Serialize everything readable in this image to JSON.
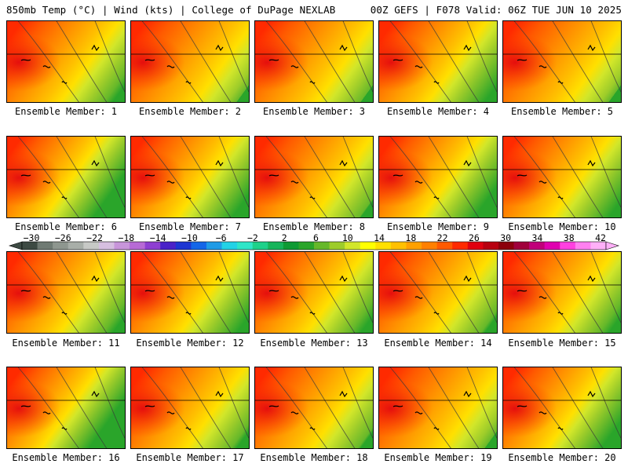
{
  "header": {
    "left_title": "850mb Temp (°C) | Wind (kts) | College of DuPage NEXLAB",
    "right_title": "00Z GEFS | F078 Valid: 06Z TUE JUN 10 2025"
  },
  "map": {
    "variable": "850mb Temp (°C)",
    "wind_units": "kts",
    "panels": [
      {
        "label": "Ensemble Member: 1",
        "member": 1,
        "warm": 1.0,
        "shift": 0.05
      },
      {
        "label": "Ensemble Member: 2",
        "member": 2,
        "warm": 1.05,
        "shift": 0.12
      },
      {
        "label": "Ensemble Member: 3",
        "member": 3,
        "warm": 0.95,
        "shift": 0.18
      },
      {
        "label": "Ensemble Member: 4",
        "member": 4,
        "warm": 0.98,
        "shift": 0.02
      },
      {
        "label": "Ensemble Member: 5",
        "member": 5,
        "warm": 1.08,
        "shift": 0.1
      },
      {
        "label": "Ensemble Member: 6",
        "member": 6,
        "warm": 0.92,
        "shift": -0.05
      },
      {
        "label": "Ensemble Member: 7",
        "member": 7,
        "warm": 0.97,
        "shift": 0.0
      },
      {
        "label": "Ensemble Member: 8",
        "member": 8,
        "warm": 0.95,
        "shift": 0.15
      },
      {
        "label": "Ensemble Member: 9",
        "member": 9,
        "warm": 0.9,
        "shift": 0.03
      },
      {
        "label": "Ensemble Member: 10",
        "member": 10,
        "warm": 1.02,
        "shift": -0.02
      },
      {
        "label": "Ensemble Member: 11",
        "member": 11,
        "warm": 0.96,
        "shift": 0.08
      },
      {
        "label": "Ensemble Member: 12",
        "member": 12,
        "warm": 1.0,
        "shift": 0.0
      },
      {
        "label": "Ensemble Member: 13",
        "member": 13,
        "warm": 0.97,
        "shift": 0.06
      },
      {
        "label": "Ensemble Member: 14",
        "member": 14,
        "warm": 0.98,
        "shift": 0.1
      },
      {
        "label": "Ensemble Member: 15",
        "member": 15,
        "warm": 1.0,
        "shift": 0.04
      },
      {
        "label": "Ensemble Member: 16",
        "member": 16,
        "warm": 0.88,
        "shift": -0.04
      },
      {
        "label": "Ensemble Member: 17",
        "member": 17,
        "warm": 0.93,
        "shift": 0.14
      },
      {
        "label": "Ensemble Member: 18",
        "member": 18,
        "warm": 0.97,
        "shift": 0.12
      },
      {
        "label": "Ensemble Member: 19",
        "member": 19,
        "warm": 1.1,
        "shift": 0.06
      },
      {
        "label": "Ensemble Member: 20",
        "member": 20,
        "warm": 0.93,
        "shift": 0.02
      }
    ]
  },
  "colorbar": {
    "tick_labels": [
      "−30",
      "−26",
      "−22",
      "−18",
      "−14",
      "−10",
      "−6",
      "−2",
      "2",
      "6",
      "10",
      "14",
      "18",
      "22",
      "26",
      "30",
      "34",
      "38",
      "42"
    ],
    "colors": [
      "#3d4a43",
      "#6f7a73",
      "#8e968f",
      "#a8aea8",
      "#c7c9c6",
      "#d6bfe0",
      "#c895da",
      "#b76ad5",
      "#8e3fd1",
      "#4a22c8",
      "#1d36d2",
      "#1466e8",
      "#1f9be6",
      "#22d2e6",
      "#2ee6c8",
      "#1dd18a",
      "#16b45a",
      "#0e9a34",
      "#2aa52a",
      "#66b82a",
      "#9dcc2a",
      "#d2e62a",
      "#ffff00",
      "#ffe000",
      "#ffc000",
      "#ffa000",
      "#ff8000",
      "#ff5a00",
      "#ff2a00",
      "#e00010",
      "#b80010",
      "#8c000c",
      "#a0003c",
      "#c0007a",
      "#e000b0",
      "#ff40e0",
      "#ff80f0",
      "#ffb0f8"
    ]
  },
  "colors": {
    "background": "#ffffff",
    "frame": "#000000",
    "contour": "#3a3a3a",
    "coast": "#000000"
  }
}
